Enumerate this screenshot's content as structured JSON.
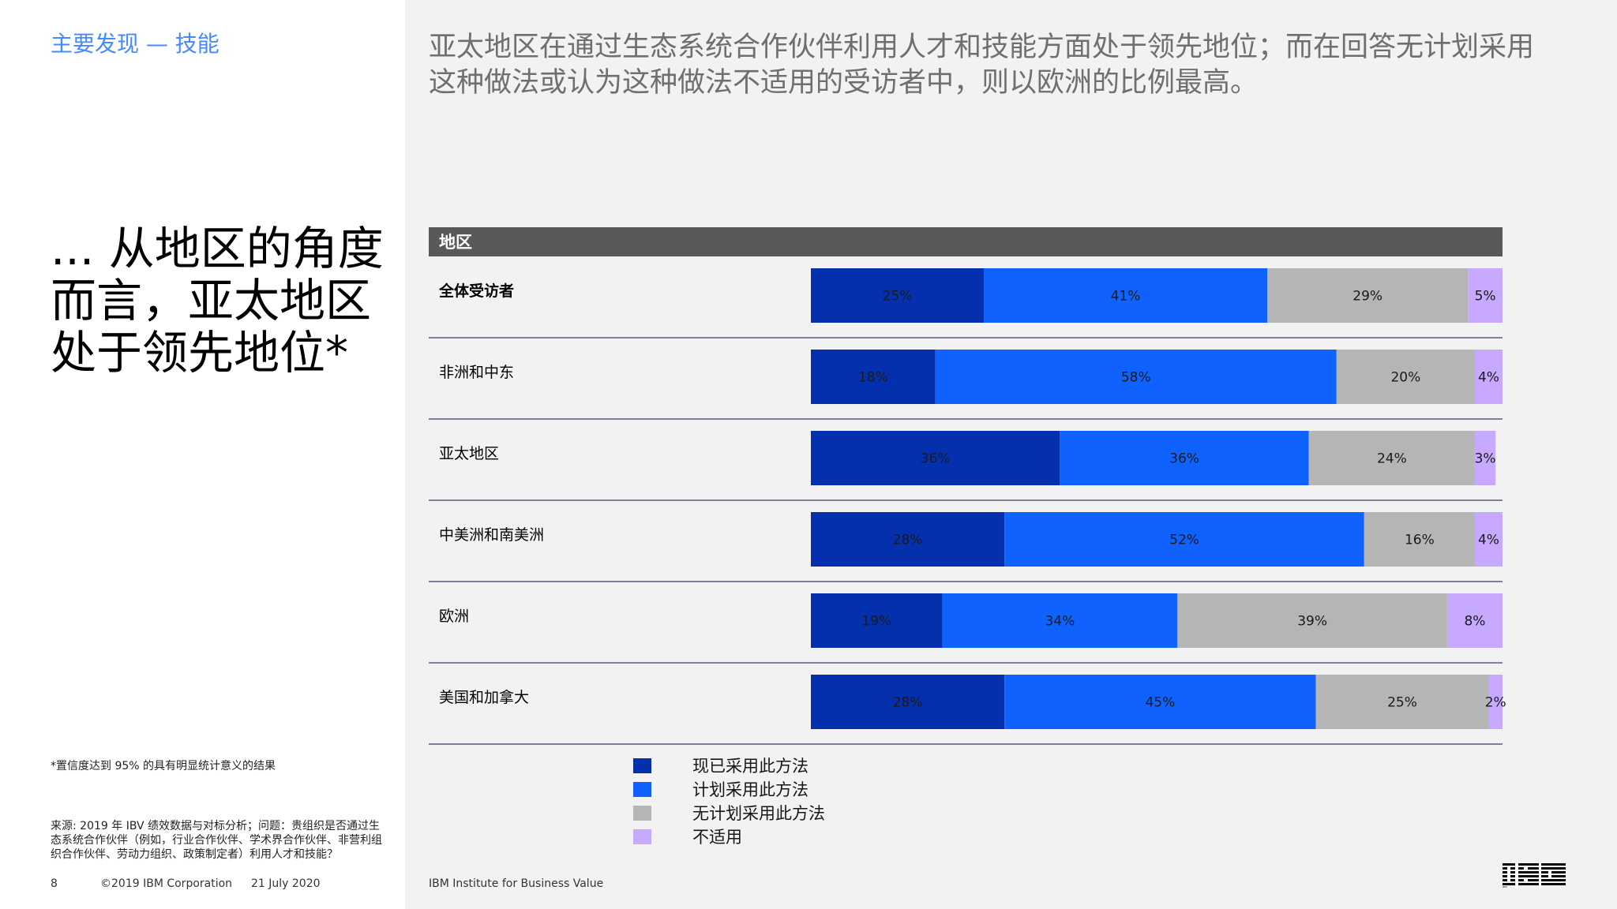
{
  "header": {
    "section_title": "主要发现 — 技能"
  },
  "hero_title": "... 从地区的角度而言，亚太地区处于领先地位*",
  "headline": "亚太地区在通过生态系统合作伙伴利用人才和技能方面处于领先地位；而在回答无计划采用这种做法或认为这种做法不适用的受访者中，则以欧洲的比例最高。",
  "footnote": "*置信度达到 95% 的具有明显统计意义的结果",
  "source": "来源: 2019 年 IBV 绩效数据与对标分析；问题：贵组织是否通过生态系统合作伙伴（例如，行业合作伙伴、学术界合作伙伴、非营利组织合作伙伴、劳动力组织、政策制定者）利用人才和技能？",
  "footer": {
    "page_number": "8",
    "copyright": "©2019 IBM Corporation",
    "date": "21 July 2020",
    "brand_text": "IBM Institute for Business Value"
  },
  "logo_text": "IBM",
  "chart_data": {
    "type": "bar",
    "orientation": "horizontal",
    "stacked": true,
    "column_header": "地区",
    "categories": [
      "全体受访者",
      "非洲和中东",
      "亚太地区",
      "中美洲和南美洲",
      "欧洲",
      "美国和加拿大"
    ],
    "series": [
      {
        "name": "现已采用此方法",
        "color": "#0530ad",
        "values": [
          25,
          18,
          36,
          28,
          19,
          28
        ]
      },
      {
        "name": "计划采用此方法",
        "color": "#0f62fe",
        "values": [
          41,
          58,
          36,
          52,
          34,
          45
        ]
      },
      {
        "name": "无计划采用此方法",
        "color": "#b5b5b5",
        "values": [
          29,
          20,
          24,
          16,
          39,
          25
        ]
      },
      {
        "name": "不适用",
        "color": "#c7aaff",
        "values": [
          5,
          4,
          3,
          4,
          8,
          2
        ]
      }
    ],
    "unit": "%",
    "xlim": [
      0,
      100
    ],
    "grid": false,
    "legend_position": "bottom"
  }
}
